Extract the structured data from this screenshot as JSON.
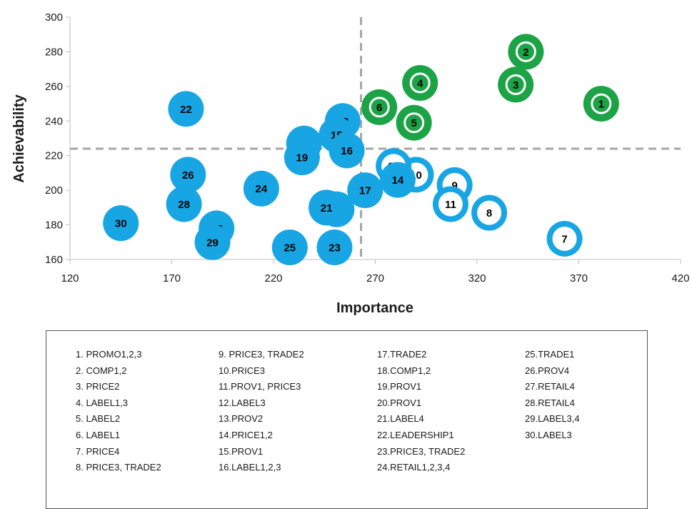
{
  "chart_data": {
    "type": "scatter",
    "title": "",
    "xlabel": "Importance",
    "ylabel": "Achievability",
    "xlim": [
      120,
      420
    ],
    "ylim": [
      160,
      300
    ],
    "xticks": [
      120,
      170,
      220,
      270,
      320,
      370,
      420
    ],
    "yticks": [
      160,
      180,
      200,
      220,
      240,
      260,
      280,
      300
    ],
    "reference_lines": {
      "x": 263,
      "y": 224
    },
    "grid": false,
    "colors": {
      "green": "#1ba345",
      "blue": "#17a5e4"
    },
    "points": [
      {
        "label": "1",
        "x": 381,
        "y": 250,
        "color": "green",
        "style": "ring"
      },
      {
        "label": "2",
        "x": 344,
        "y": 280,
        "color": "green",
        "style": "ring"
      },
      {
        "label": "3",
        "x": 339,
        "y": 261,
        "color": "green",
        "style": "ring"
      },
      {
        "label": "4",
        "x": 292,
        "y": 262,
        "color": "green",
        "style": "ring"
      },
      {
        "label": "5",
        "x": 289,
        "y": 239,
        "color": "green",
        "style": "ring"
      },
      {
        "label": "6",
        "x": 272,
        "y": 248,
        "color": "green",
        "style": "ring"
      },
      {
        "label": "7",
        "x": 363,
        "y": 172,
        "color": "blue",
        "style": "hollow"
      },
      {
        "label": "8",
        "x": 326,
        "y": 187,
        "color": "blue",
        "style": "hollow"
      },
      {
        "label": "9",
        "x": 309,
        "y": 203,
        "color": "blue",
        "style": "hollow"
      },
      {
        "label": "10",
        "x": 290,
        "y": 209,
        "color": "blue",
        "style": "hollow"
      },
      {
        "label": "11",
        "x": 307,
        "y": 192,
        "color": "blue",
        "style": "hollow"
      },
      {
        "label": "12",
        "x": 279,
        "y": 214,
        "color": "blue",
        "style": "hollow"
      },
      {
        "label": "13",
        "x": 254,
        "y": 240,
        "color": "blue",
        "style": "filled"
      },
      {
        "label": "14",
        "x": 281,
        "y": 206,
        "color": "blue",
        "style": "filled"
      },
      {
        "label": "15",
        "x": 251,
        "y": 232,
        "color": "blue",
        "style": "filled"
      },
      {
        "label": "16",
        "x": 256,
        "y": 223,
        "color": "blue",
        "style": "filled"
      },
      {
        "label": "17",
        "x": 265,
        "y": 200,
        "color": "blue",
        "style": "filled"
      },
      {
        "label": "18",
        "x": 235,
        "y": 227,
        "color": "blue",
        "style": "filled"
      },
      {
        "label": "19",
        "x": 234,
        "y": 219,
        "color": "blue",
        "style": "filled"
      },
      {
        "label": "20",
        "x": 251,
        "y": 189,
        "color": "blue",
        "style": "filled"
      },
      {
        "label": "21",
        "x": 246,
        "y": 190,
        "color": "blue",
        "style": "filled"
      },
      {
        "label": "22",
        "x": 177,
        "y": 247,
        "color": "blue",
        "style": "filled"
      },
      {
        "label": "23",
        "x": 250,
        "y": 167,
        "color": "blue",
        "style": "filled"
      },
      {
        "label": "24",
        "x": 214,
        "y": 201,
        "color": "blue",
        "style": "filled"
      },
      {
        "label": "25",
        "x": 228,
        "y": 167,
        "color": "blue",
        "style": "filled"
      },
      {
        "label": "26",
        "x": 178,
        "y": 209,
        "color": "blue",
        "style": "filled"
      },
      {
        "label": "27",
        "x": 192,
        "y": 178,
        "color": "blue",
        "style": "filled"
      },
      {
        "label": "28",
        "x": 176,
        "y": 192,
        "color": "blue",
        "style": "filled"
      },
      {
        "label": "29",
        "x": 190,
        "y": 170,
        "color": "blue",
        "style": "filled"
      },
      {
        "label": "30",
        "x": 145,
        "y": 181,
        "color": "blue",
        "style": "filled"
      }
    ]
  },
  "legend": {
    "columns": [
      [
        "1.  PROMO1,2,3",
        "2.  COMP1,2",
        "3.  PRICE2",
        "4.  LABEL1,3",
        "5.  LABEL2",
        "6.  LABEL1",
        "7.  PRICE4",
        "8.  PRICE3, TRADE2"
      ],
      [
        "9.  PRICE3, TRADE2",
        "10.PRICE3",
        "11.PROV1, PRICE3",
        "12.LABEL3",
        "13.PROV2",
        "14.PRICE1,2",
        "15.PROV1",
        "16.LABEL1,2,3"
      ],
      [
        "17.TRADE2",
        "18.COMP1,2",
        "19.PROV1",
        "20.PROV1",
        "21.LABEL4",
        "22.LEADERSHIP1",
        "23.PRICE3, TRADE2",
        "24.RETAIL1,2,3,4"
      ],
      [
        "25.TRADE1",
        "26.PROV4",
        "27.RETAIL4",
        "28.RETAIL4",
        "29.LABEL3,4",
        "30.LABEL3"
      ]
    ]
  }
}
